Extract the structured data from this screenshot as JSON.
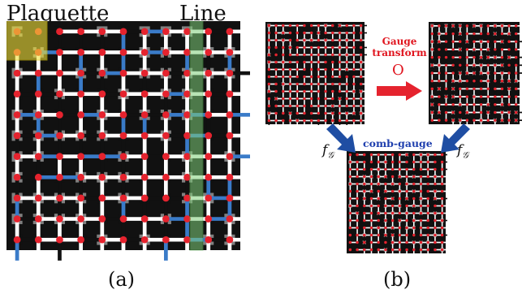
{
  "panel_a": {
    "plaquette_label": "Plaquette",
    "line_label": "Line",
    "caption": "(a)"
  },
  "panel_b": {
    "gauge_transform_label_line1": "Gauge",
    "gauge_transform_label_line2": "transform",
    "operator_symbol": "O",
    "comb_gauge_label": "comb-gauge",
    "f_g_left": "f",
    "f_g_left_sub": "𝒢",
    "f_g_right": "f",
    "f_g_right_sub": "𝒢",
    "caption": "(b)"
  },
  "colors": {
    "grid_dark": "#111111",
    "grid_gray": "#808080",
    "link_white": "#ffffff",
    "link_blue": "#3a7bc8",
    "site_red": "#e5232e",
    "plaquette_highlight": "#f2e23a",
    "line_highlight": "#7fcf7a",
    "arrow_red": "#e5232e",
    "arrow_blue": "#1f4ea3"
  }
}
